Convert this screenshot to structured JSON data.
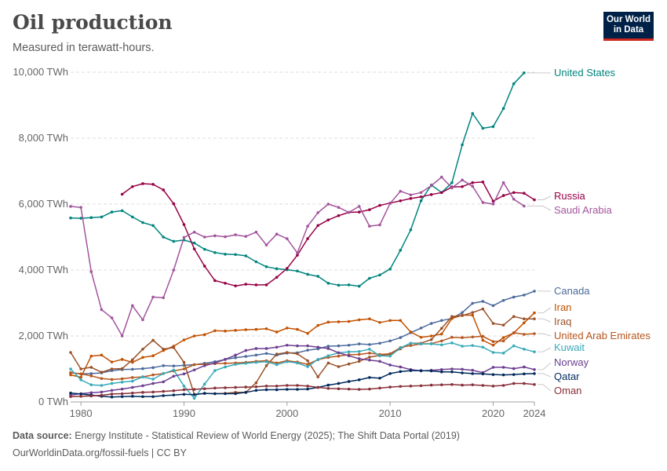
{
  "header": {
    "title": "Oil production",
    "subtitle": "Measured in terawatt-hours.",
    "logo_line1": "Our World",
    "logo_line2": "in Data"
  },
  "footer": {
    "source_label": "Data source:",
    "source_text": "Energy Institute - Statistical Review of World Energy (2025); The Shift Data Portal (2019)",
    "url_text": "OurWorldinData.org/fossil-fuels | CC BY"
  },
  "chart_data": {
    "type": "line",
    "title": "Oil production",
    "subtitle": "Measured in terawatt-hours.",
    "xlabel": "",
    "ylabel": "",
    "xlim": [
      1979,
      2024
    ],
    "ylim": [
      0,
      10000
    ],
    "y_ticks": [
      0,
      2000,
      4000,
      6000,
      8000,
      10000
    ],
    "y_tick_labels": [
      "0 TWh",
      "2,000 TWh",
      "4,000 TWh",
      "6,000 TWh",
      "8,000 TWh",
      "10,000 TWh"
    ],
    "x_ticks": [
      1980,
      1990,
      2000,
      2010,
      2020,
      2024
    ],
    "x_tick_labels": [
      "1980",
      "1990",
      "2000",
      "2010",
      "2020",
      "2024"
    ],
    "grid": "horizontal dashed",
    "legend": "right, labels at line ends",
    "x": [
      1979,
      1980,
      1981,
      1982,
      1983,
      1984,
      1985,
      1986,
      1987,
      1988,
      1989,
      1990,
      1991,
      1992,
      1993,
      1994,
      1995,
      1996,
      1997,
      1998,
      1999,
      2000,
      2001,
      2002,
      2003,
      2004,
      2005,
      2006,
      2007,
      2008,
      2009,
      2010,
      2011,
      2012,
      2013,
      2014,
      2015,
      2016,
      2017,
      2018,
      2019,
      2020,
      2021,
      2022,
      2023,
      2024
    ],
    "series": [
      {
        "name": "United States",
        "color": "#00847e",
        "values": [
          5580,
          5570,
          5590,
          5610,
          5760,
          5800,
          5610,
          5440,
          5350,
          5000,
          4870,
          4910,
          4820,
          4630,
          4530,
          4480,
          4470,
          4430,
          4250,
          4100,
          4040,
          4010,
          3970,
          3870,
          3810,
          3600,
          3540,
          3550,
          3510,
          3750,
          3850,
          4030,
          4600,
          5220,
          6100,
          6580,
          6350,
          6650,
          7800,
          8750,
          8300,
          8350,
          8900,
          9650,
          9980,
          null
        ]
      },
      {
        "name": "Russia",
        "color": "#970046",
        "values": [
          null,
          null,
          null,
          null,
          null,
          6300,
          6530,
          6620,
          6600,
          6430,
          6010,
          5380,
          4640,
          4120,
          3680,
          3600,
          3520,
          3570,
          3550,
          3550,
          3780,
          4050,
          4450,
          4950,
          5350,
          5520,
          5650,
          5750,
          5760,
          5830,
          5960,
          6030,
          6100,
          6170,
          6220,
          6290,
          6350,
          6520,
          6530,
          6650,
          6670,
          6090,
          6260,
          6350,
          6330,
          6130
        ]
      },
      {
        "name": "Saudi Arabia",
        "color": "#a2559c",
        "values": [
          5930,
          5900,
          3950,
          2800,
          2550,
          2000,
          2920,
          2490,
          3180,
          3160,
          4000,
          4990,
          5150,
          5000,
          5040,
          5010,
          5070,
          5020,
          5150,
          4760,
          5090,
          4950,
          4520,
          5330,
          5740,
          6000,
          5900,
          5750,
          5930,
          5330,
          5370,
          6020,
          6390,
          6280,
          6350,
          6560,
          6820,
          6490,
          6730,
          6540,
          6050,
          6000,
          6650,
          6150,
          5940,
          null
        ]
      },
      {
        "name": "Canada",
        "color": "#4c6a9c",
        "values": [
          880,
          850,
          860,
          880,
          950,
          980,
          990,
          1010,
          1040,
          1100,
          1090,
          1110,
          1130,
          1170,
          1220,
          1290,
          1340,
          1380,
          1420,
          1470,
          1420,
          1480,
          1490,
          1570,
          1610,
          1690,
          1700,
          1720,
          1760,
          1740,
          1780,
          1850,
          1950,
          2100,
          2240,
          2380,
          2470,
          2530,
          2710,
          2990,
          3050,
          2920,
          3080,
          3180,
          3240,
          3360
        ]
      },
      {
        "name": "Iran",
        "color": "#c15100",
        "values": [
          820,
          750,
          1390,
          1420,
          1210,
          1290,
          1200,
          1350,
          1400,
          1560,
          1690,
          1880,
          2000,
          2040,
          2160,
          2150,
          2170,
          2190,
          2200,
          2220,
          2120,
          2240,
          2200,
          2080,
          2320,
          2420,
          2430,
          2440,
          2490,
          2520,
          2410,
          2470,
          2470,
          2120,
          1960,
          2000,
          2060,
          2530,
          2630,
          2630,
          1870,
          1720,
          1950,
          2090,
          2400,
          2700
        ]
      },
      {
        "name": "Iraq",
        "color": "#9a5129",
        "values": [
          1500,
          1000,
          1050,
          900,
          1000,
          1010,
          1280,
          1600,
          1870,
          1600,
          1650,
          1200,
          230,
          260,
          250,
          260,
          290,
          290,
          580,
          1100,
          1450,
          1500,
          1460,
          1250,
          760,
          1180,
          1070,
          1150,
          1230,
          1360,
          1410,
          1440,
          1610,
          1780,
          1780,
          1890,
          2230,
          2590,
          2620,
          2710,
          2820,
          2380,
          2330,
          2590,
          2520,
          2520
        ]
      },
      {
        "name": "United Arab Emirates",
        "color": "#b6561e",
        "values": [
          890,
          850,
          790,
          710,
          680,
          700,
          740,
          760,
          820,
          860,
          940,
          1000,
          1130,
          1140,
          1160,
          1170,
          1180,
          1200,
          1230,
          1250,
          1180,
          1250,
          1210,
          1140,
          1280,
          1350,
          1390,
          1430,
          1440,
          1480,
          1440,
          1460,
          1650,
          1710,
          1760,
          1770,
          1850,
          1960,
          1950,
          1970,
          1990,
          1830,
          1850,
          2100,
          2050,
          2070
        ]
      },
      {
        "name": "Kuwait",
        "color": "#38aaba",
        "values": [
          1000,
          670,
          520,
          500,
          560,
          600,
          630,
          760,
          690,
          860,
          970,
          480,
          110,
          540,
          950,
          1060,
          1140,
          1170,
          1200,
          1220,
          1130,
          1220,
          1180,
          1070,
          1290,
          1400,
          1490,
          1520,
          1530,
          1600,
          1400,
          1390,
          1640,
          1780,
          1760,
          1760,
          1730,
          1790,
          1690,
          1710,
          1660,
          1500,
          1480,
          1700,
          1600,
          1520
        ]
      },
      {
        "name": "Norway",
        "color": "#6d3e91",
        "values": [
          210,
          250,
          280,
          300,
          350,
          390,
          440,
          490,
          560,
          610,
          780,
          850,
          970,
          1100,
          1180,
          1290,
          1420,
          1560,
          1620,
          1620,
          1660,
          1720,
          1700,
          1700,
          1660,
          1620,
          1490,
          1400,
          1310,
          1270,
          1230,
          1120,
          1060,
          980,
          940,
          960,
          980,
          1000,
          990,
          960,
          890,
          1050,
          1050,
          1010,
          1060,
          980
        ]
      },
      {
        "name": "Qatar",
        "color": "#00295b",
        "values": [
          270,
          240,
          210,
          170,
          150,
          160,
          170,
          160,
          160,
          190,
          210,
          230,
          220,
          260,
          250,
          250,
          250,
          290,
          350,
          370,
          370,
          380,
          380,
          390,
          440,
          510,
          560,
          620,
          670,
          740,
          720,
          860,
          920,
          950,
          950,
          940,
          910,
          910,
          880,
          860,
          850,
          830,
          820,
          830,
          850,
          860
        ]
      },
      {
        "name": "Oman",
        "color": "#883039",
        "values": [
          160,
          170,
          180,
          200,
          240,
          250,
          270,
          290,
          300,
          320,
          340,
          370,
          380,
          400,
          420,
          430,
          440,
          450,
          460,
          480,
          480,
          500,
          500,
          480,
          440,
          410,
          400,
          390,
          380,
          390,
          420,
          450,
          470,
          480,
          490,
          510,
          520,
          530,
          510,
          520,
          500,
          480,
          500,
          560,
          560,
          530
        ]
      }
    ],
    "legend_labels": [
      "United States",
      "Russia",
      "Saudi Arabia",
      "Canada",
      "Iran",
      "Iraq",
      "United Arab Emirates",
      "Kuwait",
      "Norway",
      "Qatar",
      "Oman"
    ]
  }
}
